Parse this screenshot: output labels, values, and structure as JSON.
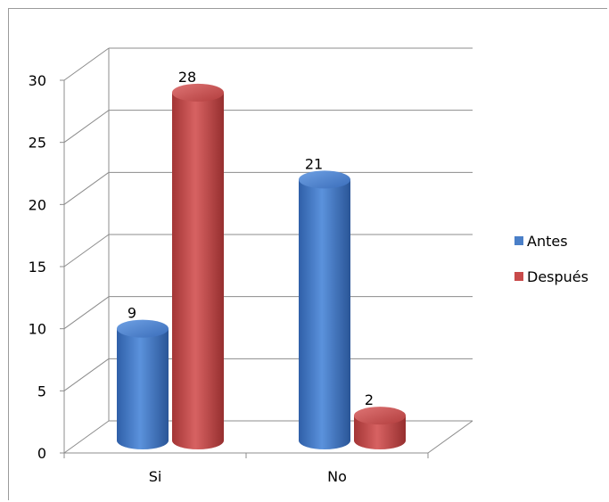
{
  "chart_data": {
    "type": "bar",
    "style": "3d-cylinder-clustered",
    "categories": [
      "Si",
      "No"
    ],
    "series": [
      {
        "name": "Antes",
        "values": [
          9,
          21
        ],
        "color": "#4a7fc8"
      },
      {
        "name": "Después",
        "values": [
          28,
          2
        ],
        "color": "#c84a4a"
      }
    ],
    "ylim": [
      0,
      30
    ],
    "yticks": [
      0,
      5,
      10,
      15,
      20,
      25,
      30
    ],
    "grid": true,
    "legend": "right",
    "data_labels": true
  }
}
